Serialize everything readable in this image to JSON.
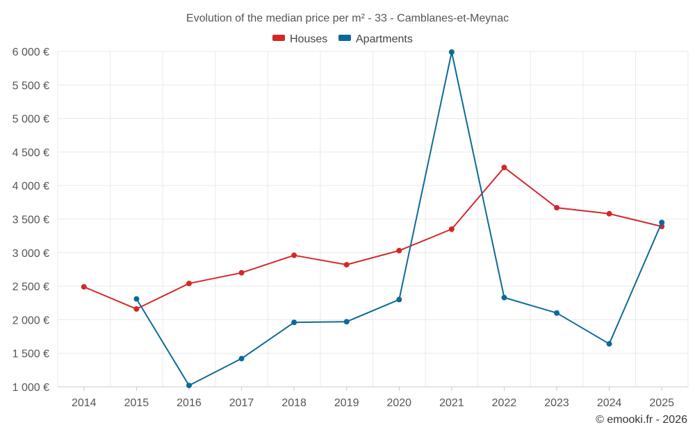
{
  "chart_data": {
    "type": "line",
    "title": "Evolution of the median price per m² - 33 - Camblanes-et-Meynac",
    "categories": [
      "2014",
      "2015",
      "2016",
      "2017",
      "2018",
      "2019",
      "2020",
      "2021",
      "2022",
      "2023",
      "2024",
      "2025"
    ],
    "series": [
      {
        "name": "Houses",
        "color": "#d62728",
        "values": [
          2490,
          2160,
          2540,
          2700,
          2960,
          2820,
          3030,
          3350,
          4270,
          3670,
          3580,
          3390
        ]
      },
      {
        "name": "Apartments",
        "color": "#0b6a9a",
        "values": [
          null,
          2310,
          1020,
          1420,
          1960,
          1970,
          2300,
          5990,
          2330,
          2100,
          1640,
          3450
        ]
      }
    ],
    "ylim": [
      1000,
      6000
    ],
    "yticks": [
      1000,
      1500,
      2000,
      2500,
      3000,
      3500,
      4000,
      4500,
      5000,
      5500,
      6000
    ],
    "ytick_labels": [
      "1 000 €",
      "1 500 €",
      "2 000 €",
      "2 500 €",
      "3 000 €",
      "3 500 €",
      "4 000 €",
      "4 500 €",
      "5 000 €",
      "5 500 €",
      "6 000 €"
    ],
    "xlabel": "",
    "ylabel": "",
    "grid": true,
    "legend_position": "top-center",
    "credit": "© emooki.fr - 2026"
  }
}
